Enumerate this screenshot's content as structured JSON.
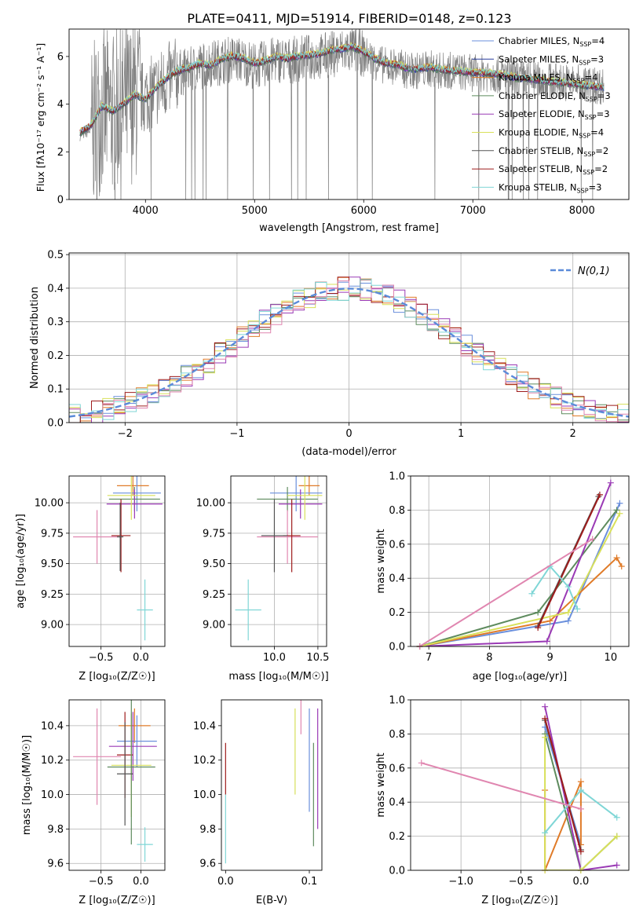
{
  "figure": {
    "title": "PLATE=0411, MJD=51914, FIBERID=0148, z=0.123"
  },
  "chart_data": [
    {
      "id": "spectrum",
      "type": "line",
      "xlabel": "wavelength [Angstrom, rest frame]",
      "ylabel": "Flux [f_λ 10^-17 erg cm^-2 s^-1 A^-1]",
      "xlim": [
        3300,
        8430
      ],
      "ylim": [
        0,
        7.15
      ],
      "xticks": [
        4000,
        5000,
        6000,
        7000,
        8000
      ],
      "yticks": [
        0,
        2,
        4,
        6
      ],
      "legend_position": "upper-right",
      "observed": {
        "color": "#808080",
        "x": [
          3400,
          3500,
          3550,
          3600,
          3700,
          3800,
          3900,
          4000,
          4100,
          4200,
          4300,
          4400,
          4500,
          4600,
          4700,
          4800,
          4900,
          5000,
          5100,
          5200,
          5300,
          5400,
          5500,
          5600,
          5700,
          5800,
          5900,
          6000,
          6100,
          6200,
          6300,
          6400,
          6500,
          6600,
          6700,
          6800,
          6900,
          7000,
          7100,
          7200,
          7300,
          7400,
          7500,
          7600,
          7700,
          7800,
          7900,
          8000,
          8100,
          8200
        ],
        "y": [
          2.7,
          2.9,
          3.4,
          3.8,
          3.6,
          3.9,
          4.2,
          4.3,
          4.6,
          5.0,
          5.3,
          5.4,
          5.6,
          5.7,
          5.8,
          5.9,
          5.8,
          5.6,
          5.7,
          5.9,
          5.8,
          5.9,
          5.95,
          6.0,
          6.1,
          6.2,
          6.3,
          6.1,
          5.8,
          5.6,
          5.6,
          5.4,
          5.4,
          5.5,
          5.4,
          5.4,
          5.35,
          5.3,
          5.3,
          5.25,
          5.2,
          5.1,
          5.05,
          5.0,
          4.95,
          4.95,
          4.9,
          4.85,
          4.8,
          4.75
        ]
      },
      "model_x": [
        3400,
        3500,
        3600,
        3700,
        3800,
        3900,
        4000,
        4100,
        4200,
        4300,
        4400,
        4500,
        4600,
        4700,
        4800,
        4900,
        5000,
        5100,
        5200,
        5300,
        5400,
        5500,
        5600,
        5700,
        5800,
        5900,
        6000,
        6100,
        6200,
        6300,
        6400,
        6500,
        6600,
        6700,
        6800,
        6900,
        7000,
        7100,
        7200,
        7300,
        7400,
        7500,
        7600,
        7700,
        7800,
        7900,
        8000,
        8100,
        8200
      ],
      "model_y": [
        2.8,
        3.1,
        3.9,
        3.7,
        4.0,
        4.4,
        4.2,
        4.7,
        5.1,
        5.4,
        5.5,
        5.7,
        5.6,
        5.9,
        6.0,
        5.9,
        5.7,
        5.8,
        6.0,
        5.9,
        6.0,
        6.05,
        6.1,
        6.25,
        6.3,
        6.4,
        6.2,
        5.9,
        5.7,
        5.65,
        5.5,
        5.45,
        5.55,
        5.45,
        5.4,
        5.35,
        5.3,
        5.3,
        5.25,
        5.2,
        5.1,
        5.05,
        5.0,
        4.95,
        4.9,
        4.85,
        4.8,
        4.75,
        4.7
      ],
      "series": [
        {
          "name": "Chabrier MILES, N_SSP=4",
          "color": "#6a8fdc",
          "offset": 0.02
        },
        {
          "name": "Salpeter MILES, N_SSP=3",
          "color": "#2a3f9e",
          "offset": -0.03
        },
        {
          "name": "Kroupa MILES, N_SSP=4",
          "color": "#e07b28",
          "offset": 0.05
        },
        {
          "name": "Chabrier ELODIE, N_SSP=3",
          "color": "#5e8b5e",
          "offset": -0.05
        },
        {
          "name": "Salpeter ELODIE, N_SSP=3",
          "color": "#9a3ab5",
          "offset": 0.0
        },
        {
          "name": "Kroupa ELODIE, N_SSP=4",
          "color": "#d8e05a",
          "offset": 0.08
        },
        {
          "name": "Chabrier STELIB, N_SSP=2",
          "color": "#555555",
          "offset": -0.02
        },
        {
          "name": "Salpeter STELIB, N_SSP=2",
          "color": "#9e1c1c",
          "offset": 0.03
        },
        {
          "name": "Kroupa STELIB, N_SSP=3",
          "color": "#7fd6d6",
          "offset": 0.06
        }
      ]
    },
    {
      "id": "residuals",
      "type": "step",
      "xlabel": "(data-model)/error",
      "ylabel": "Normed distribution",
      "xlim": [
        -2.5,
        2.5
      ],
      "ylim": [
        0,
        0.505
      ],
      "xticks": [
        -2,
        -1,
        0,
        1,
        2
      ],
      "yticks": [
        0.0,
        0.1,
        0.2,
        0.3,
        0.4,
        0.5
      ],
      "grid": true,
      "legend_label": "N(0,1)",
      "legend_position": "upper-right",
      "gaussian_color": "#5b8bd9",
      "bin_edges_start": -2.5,
      "bin_width": 0.1,
      "hist_colors": [
        "#6a8fdc",
        "#e07b28",
        "#5e8b5e",
        "#9a3ab5",
        "#d8e05a",
        "#9e1c1c",
        "#7fd6d6",
        "#e086b0"
      ]
    },
    {
      "id": "age-vs-Z",
      "type": "errorbar",
      "xlabel": "Z [log10(Z/Z☉)]",
      "ylabel": "age  [log10(age/yr)]",
      "xlim": [
        -0.9,
        0.3
      ],
      "ylim": [
        8.82,
        10.22
      ],
      "xticks": [
        -0.5,
        0.0
      ],
      "yticks": [
        9.0,
        9.25,
        9.5,
        9.75,
        10.0
      ],
      "grid": true
    },
    {
      "id": "age-vs-mass",
      "type": "errorbar",
      "xlabel": "mass [log10(M/M☉)]",
      "ylabel": "",
      "xlim": [
        9.5,
        10.6
      ],
      "ylim": [
        8.82,
        10.22
      ],
      "xticks": [
        10.0,
        10.5
      ],
      "yticks": [
        9.0,
        9.25,
        9.5,
        9.75,
        10.0
      ],
      "grid": true
    },
    {
      "id": "weight-vs-age",
      "type": "line",
      "xlabel": "age  [log10(age/yr)]",
      "ylabel": "mass weight",
      "xlim": [
        6.7,
        10.3
      ],
      "ylim": [
        0,
        1.0
      ],
      "xticks": [
        7,
        8,
        9,
        10
      ],
      "yticks": [
        0.0,
        0.2,
        0.4,
        0.6,
        0.8,
        1.0
      ],
      "grid": true,
      "series": [
        {
          "color": "#6a8fdc",
          "x": [
            6.85,
            9.3,
            10.15
          ],
          "y": [
            0.0,
            0.15,
            0.84
          ]
        },
        {
          "color": "#e07b28",
          "x": [
            6.85,
            9.0,
            10.1,
            10.18
          ],
          "y": [
            0.0,
            0.15,
            0.52,
            0.47
          ]
        },
        {
          "color": "#5e8b5e",
          "x": [
            6.85,
            8.8,
            10.1
          ],
          "y": [
            0.0,
            0.2,
            0.8
          ]
        },
        {
          "color": "#9a3ab5",
          "x": [
            6.85,
            8.95,
            10.0
          ],
          "y": [
            0.0,
            0.03,
            0.96
          ]
        },
        {
          "color": "#d8e05a",
          "x": [
            6.85,
            9.3,
            10.15
          ],
          "y": [
            0.0,
            0.2,
            0.78
          ]
        },
        {
          "color": "#555555",
          "x": [
            8.8,
            9.8
          ],
          "y": [
            0.12,
            0.88
          ]
        },
        {
          "color": "#9e1c1c",
          "x": [
            8.8,
            9.82
          ],
          "y": [
            0.11,
            0.89
          ]
        },
        {
          "color": "#7fd6d6",
          "x": [
            8.7,
            9.0,
            9.3,
            9.45
          ],
          "y": [
            0.31,
            0.47,
            0.35,
            0.22
          ]
        },
        {
          "color": "#e086b0",
          "x": [
            6.85,
            9.7
          ],
          "y": [
            0.0,
            0.63
          ]
        }
      ]
    },
    {
      "id": "mass-vs-Z",
      "type": "errorbar",
      "xlabel": "Z [log10(Z/Z☉)]",
      "ylabel": "mass [log10(M/M☉)]",
      "xlim": [
        -0.9,
        0.3
      ],
      "ylim": [
        9.56,
        10.55
      ],
      "xticks": [
        -0.5,
        0.0
      ],
      "yticks": [
        9.6,
        9.8,
        10.0,
        10.2,
        10.4
      ],
      "grid": true
    },
    {
      "id": "mass-vs-EBV",
      "type": "errorbar",
      "xlabel": "E(B-V)",
      "ylabel": "",
      "xlim": [
        -0.005,
        0.115
      ],
      "ylim": [
        9.56,
        10.55
      ],
      "xticks": [
        0.0,
        0.1
      ],
      "yticks": [
        9.6,
        9.8,
        10.0,
        10.2,
        10.4
      ],
      "grid": false
    },
    {
      "id": "weight-vs-Z",
      "type": "line",
      "xlabel": "Z [log10(Z/Z☉)]",
      "ylabel": "mass weight",
      "xlim": [
        -1.42,
        0.4
      ],
      "ylim": [
        0,
        1.0
      ],
      "xticks": [
        -1.0,
        -0.5,
        0.0
      ],
      "yticks": [
        0.0,
        0.2,
        0.4,
        0.6,
        0.8,
        1.0
      ],
      "grid": true,
      "series": [
        {
          "color": "#6a8fdc",
          "x": [
            -0.3,
            0.0
          ],
          "y": [
            0.84,
            0.15
          ]
        },
        {
          "color": "#e07b28",
          "x": [
            -0.3,
            -0.3,
            0.0,
            0.0
          ],
          "y": [
            0.47,
            0.0,
            0.52,
            0.15
          ]
        },
        {
          "color": "#5e8b5e",
          "x": [
            -0.3,
            0.0,
            0.3
          ],
          "y": [
            0.8,
            0.0,
            0.2
          ]
        },
        {
          "color": "#9a3ab5",
          "x": [
            -0.3,
            0.0,
            0.3
          ],
          "y": [
            0.96,
            0.0,
            0.03
          ]
        },
        {
          "color": "#d8e05a",
          "x": [
            -0.3,
            -0.3,
            0.0,
            0.3
          ],
          "y": [
            0.78,
            0.0,
            0.0,
            0.2
          ]
        },
        {
          "color": "#555555",
          "x": [
            -0.3,
            0.0
          ],
          "y": [
            0.88,
            0.12
          ]
        },
        {
          "color": "#9e1c1c",
          "x": [
            -0.3,
            0.0
          ],
          "y": [
            0.89,
            0.11
          ]
        },
        {
          "color": "#7fd6d6",
          "x": [
            -0.3,
            0.0,
            0.3
          ],
          "y": [
            0.22,
            0.47,
            0.31
          ]
        },
        {
          "color": "#e086b0",
          "x": [
            -1.33,
            0.0
          ],
          "y": [
            0.63,
            0.36
          ]
        }
      ]
    }
  ],
  "errorbars": {
    "age_vs_Z": [
      {
        "color": "#e07b28",
        "x": -0.1,
        "y": 10.14,
        "xerr": 0.2,
        "yerr": 0.08
      },
      {
        "color": "#6a8fdc",
        "x": -0.05,
        "y": 10.08,
        "xerr": 0.3,
        "yerr": 0.15
      },
      {
        "color": "#5e8b5e",
        "x": -0.08,
        "y": 10.03,
        "xerr": 0.32,
        "yerr": 0.1
      },
      {
        "color": "#9a3ab5",
        "x": -0.08,
        "y": 9.99,
        "xerr": 0.35,
        "yerr": 0.12
      },
      {
        "color": "#d8e05a",
        "x": -0.12,
        "y": 10.06,
        "xerr": 0.3,
        "yerr": 0.2
      },
      {
        "color": "#e086b0",
        "x": -0.55,
        "y": 9.72,
        "xerr": 0.3,
        "yerr": 0.22
      },
      {
        "color": "#9e1c1c",
        "x": -0.25,
        "y": 9.73,
        "xerr": 0.12,
        "yerr": 0.3
      },
      {
        "color": "#555555",
        "x": -0.26,
        "y": 9.72,
        "xerr": 0.04,
        "yerr": 0.28
      },
      {
        "color": "#7fd6d6",
        "x": 0.05,
        "y": 9.12,
        "xerr": 0.1,
        "yerr": 0.25
      }
    ],
    "age_vs_mass": [
      {
        "color": "#e07b28",
        "x": 10.4,
        "y": 10.14,
        "xerr": 0.12,
        "yerr": 0.08
      },
      {
        "color": "#6a8fdc",
        "x": 10.25,
        "y": 10.08,
        "xerr": 0.3,
        "yerr": 0.15
      },
      {
        "color": "#5e8b5e",
        "x": 10.15,
        "y": 10.03,
        "xerr": 0.35,
        "yerr": 0.1
      },
      {
        "color": "#9a3ab5",
        "x": 10.3,
        "y": 9.99,
        "xerr": 0.25,
        "yerr": 0.12
      },
      {
        "color": "#d8e05a",
        "x": 10.35,
        "y": 10.06,
        "xerr": 0.2,
        "yerr": 0.2
      },
      {
        "color": "#e086b0",
        "x": 10.15,
        "y": 9.72,
        "xerr": 0.35,
        "yerr": 0.22
      },
      {
        "color": "#9e1c1c",
        "x": 10.2,
        "y": 9.73,
        "xerr": 0.1,
        "yerr": 0.3
      },
      {
        "color": "#555555",
        "x": 10.0,
        "y": 9.73,
        "xerr": 0.15,
        "yerr": 0.3
      },
      {
        "color": "#7fd6d6",
        "x": 9.7,
        "y": 9.12,
        "xerr": 0.15,
        "yerr": 0.25
      }
    ],
    "mass_vs_Z": [
      {
        "color": "#e07b28",
        "x": -0.08,
        "y": 10.4,
        "xerr": 0.2,
        "yerr": 0.1
      },
      {
        "color": "#6a8fdc",
        "x": -0.05,
        "y": 10.31,
        "xerr": 0.25,
        "yerr": 0.15
      },
      {
        "color": "#9a3ab5",
        "x": -0.1,
        "y": 10.28,
        "xerr": 0.3,
        "yerr": 0.2
      },
      {
        "color": "#9e1c1c",
        "x": -0.2,
        "y": 10.23,
        "xerr": 0.1,
        "yerr": 0.25
      },
      {
        "color": "#e086b0",
        "x": -0.55,
        "y": 10.22,
        "xerr": 0.3,
        "yerr": 0.28
      },
      {
        "color": "#d8e05a",
        "x": -0.12,
        "y": 10.17,
        "xerr": 0.25,
        "yerr": 0.3
      },
      {
        "color": "#5e8b5e",
        "x": -0.12,
        "y": 10.16,
        "xerr": 0.3,
        "yerr": 0.45
      },
      {
        "color": "#555555",
        "x": -0.2,
        "y": 10.12,
        "xerr": 0.1,
        "yerr": 0.3
      },
      {
        "color": "#7fd6d6",
        "x": 0.05,
        "y": 9.71,
        "xerr": 0.1,
        "yerr": 0.1
      }
    ],
    "mass_vs_EBV": [
      {
        "color": "#9e1c1c",
        "x": 0.0,
        "y": 10.15,
        "yerr": 0.15
      },
      {
        "color": "#7fd6d6",
        "x": 0.0,
        "y": 9.8,
        "yerr": 0.2
      },
      {
        "color": "#d8e05a",
        "x": 0.083,
        "y": 10.25,
        "yerr": 0.25
      },
      {
        "color": "#6a8fdc",
        "x": 0.1,
        "y": 10.2,
        "yerr": 0.3
      },
      {
        "color": "#5e8b5e",
        "x": 0.105,
        "y": 10.0,
        "yerr": 0.3
      },
      {
        "color": "#9a3ab5",
        "x": 0.11,
        "y": 10.15,
        "yerr": 0.35
      },
      {
        "color": "#e086b0",
        "x": 0.09,
        "y": 10.45,
        "yerr": 0.1
      }
    ]
  }
}
